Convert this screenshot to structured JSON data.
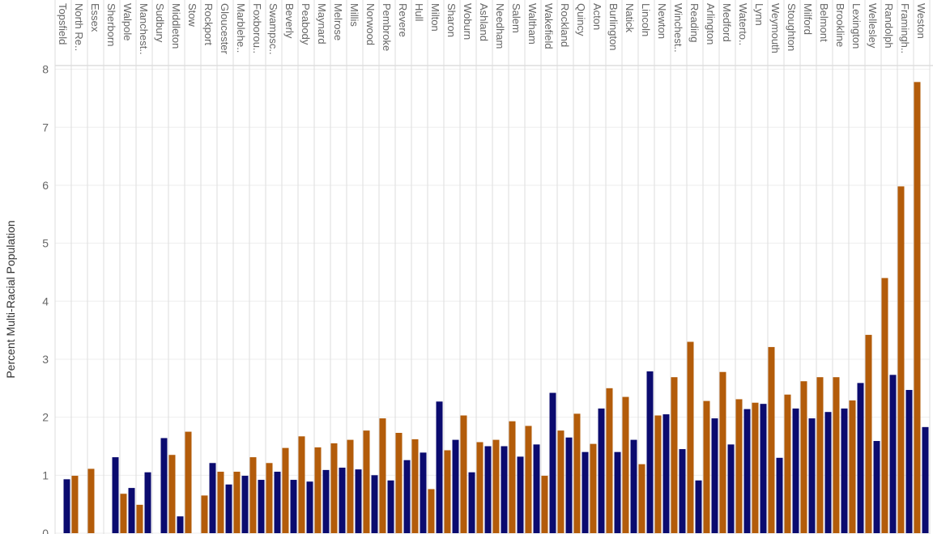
{
  "chart_data": {
    "type": "bar",
    "y_label": "Percent Multi-Racial Population",
    "categories": [
      "Topsfield",
      "North Re..",
      "Essex",
      "Sherborn",
      "Walpole",
      "Manchest..",
      "Sudbury",
      "Middleton",
      "Stow",
      "Rockport",
      "Gloucester",
      "Marblehe..",
      "Foxborou..",
      "Swampsc..",
      "Beverly",
      "Peabody",
      "Maynard",
      "Melrose",
      "Millis",
      "Norwood",
      "Pembroke",
      "Revere",
      "Hull",
      "Milton",
      "Sharon",
      "Woburn",
      "Ashland",
      "Needham",
      "Salem",
      "Waltham",
      "Wakefield",
      "Rockland",
      "Quincy",
      "Acton",
      "Burlington",
      "Natick",
      "Lincoln",
      "Newton",
      "Winchest..",
      "Reading",
      "Arlington",
      "Medford",
      "Waterto..",
      "Lynn",
      "Weymouth",
      "Stoughton",
      "Milford",
      "Belmont",
      "Brookline",
      "Lexington",
      "Wellesley",
      "Randolph",
      "Framingh..",
      "Weston"
    ],
    "series": [
      {
        "color": "#b35c0a",
        "values": [
          null,
          0.99,
          1.11,
          null,
          0.68,
          0.49,
          null,
          1.35,
          1.75,
          0.65,
          1.06,
          1.06,
          1.31,
          1.21,
          1.47,
          1.67,
          1.48,
          1.55,
          1.61,
          1.77,
          1.98,
          1.73,
          1.62,
          0.76,
          1.43,
          2.03,
          1.57,
          1.61,
          1.93,
          1.85,
          0.99,
          1.77,
          2.06,
          1.54,
          2.5,
          2.35,
          1.19,
          2.03,
          2.69,
          3.3,
          2.28,
          2.78,
          2.31,
          2.25,
          3.21,
          2.39,
          2.62,
          2.69,
          2.69,
          2.29,
          3.42,
          4.4,
          5.98,
          7.78
        ]
      },
      {
        "color": "#0b0b6f",
        "values": [
          0.93,
          null,
          null,
          1.31,
          0.78,
          1.05,
          1.64,
          0.29,
          null,
          1.21,
          0.84,
          0.99,
          0.92,
          1.06,
          0.92,
          0.89,
          1.09,
          1.13,
          1.1,
          1.0,
          0.91,
          1.26,
          1.39,
          2.27,
          1.61,
          1.05,
          1.5,
          1.5,
          1.32,
          1.53,
          2.42,
          1.65,
          1.4,
          2.15,
          1.4,
          1.61,
          2.79,
          2.05,
          1.45,
          0.91,
          1.98,
          1.53,
          2.14,
          2.23,
          1.3,
          2.15,
          1.98,
          2.09,
          2.15,
          2.59,
          1.59,
          2.73,
          2.47,
          1.83
        ]
      }
    ],
    "ylim": [
      0,
      8.05
    ],
    "yticks": [
      0,
      1,
      2,
      3,
      4,
      5,
      6,
      7,
      8
    ],
    "grid": true
  }
}
